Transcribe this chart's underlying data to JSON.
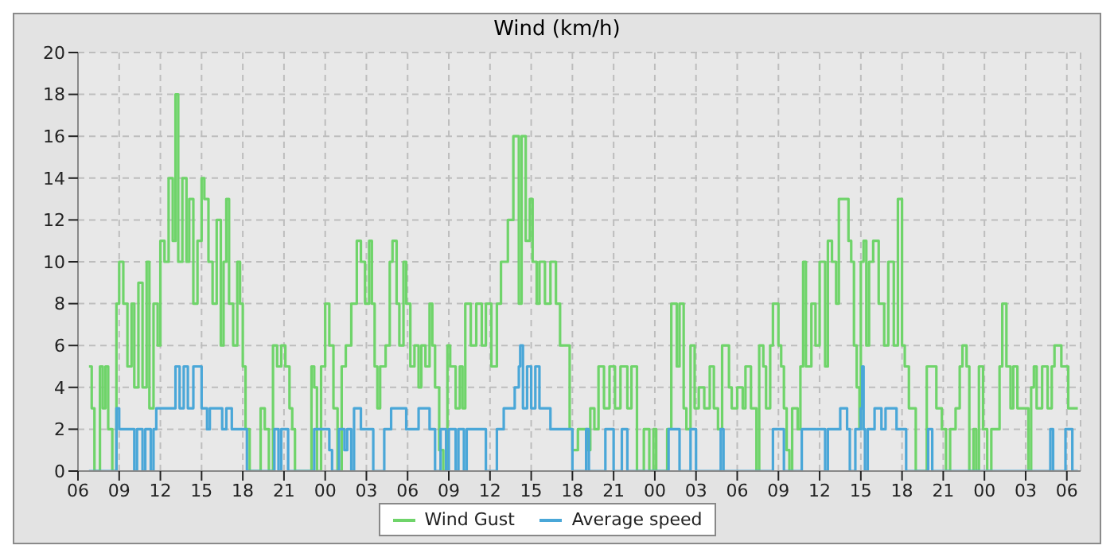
{
  "chart_data": {
    "type": "step",
    "title": "Wind (km/h)",
    "legend": "bottom",
    "grid": true,
    "line_style": "solid",
    "marker": "none",
    "xlim": [
      6,
      79
    ],
    "ylim": [
      0,
      20
    ],
    "yticks": [
      0,
      2,
      4,
      6,
      8,
      10,
      12,
      14,
      16,
      18,
      20
    ],
    "xticks": [
      {
        "value": 6,
        "label": "06"
      },
      {
        "value": 9,
        "label": "09"
      },
      {
        "value": 12,
        "label": "12"
      },
      {
        "value": 15,
        "label": "15"
      },
      {
        "value": 18,
        "label": "18"
      },
      {
        "value": 21,
        "label": "21"
      },
      {
        "value": 24,
        "label": "00"
      },
      {
        "value": 27,
        "label": "03"
      },
      {
        "value": 30,
        "label": "06"
      },
      {
        "value": 33,
        "label": "09"
      },
      {
        "value": 36,
        "label": "12"
      },
      {
        "value": 39,
        "label": "15"
      },
      {
        "value": 42,
        "label": "18"
      },
      {
        "value": 45,
        "label": "21"
      },
      {
        "value": 48,
        "label": "00"
      },
      {
        "value": 51,
        "label": "03"
      },
      {
        "value": 54,
        "label": "06"
      },
      {
        "value": 57,
        "label": "09"
      },
      {
        "value": 60,
        "label": "12"
      },
      {
        "value": 63,
        "label": "15"
      },
      {
        "value": 66,
        "label": "18"
      },
      {
        "value": 69,
        "label": "21"
      },
      {
        "value": 72,
        "label": "00"
      },
      {
        "value": 75,
        "label": "03"
      },
      {
        "value": 78,
        "label": "06"
      }
    ],
    "series": [
      {
        "name": "Wind Gust",
        "color": "#6fd46a",
        "x": [
          6.8,
          7.0,
          7.2,
          7.6,
          7.8,
          8.0,
          8.2,
          8.5,
          8.8,
          9.0,
          9.3,
          9.6,
          9.9,
          10.1,
          10.4,
          10.7,
          11.0,
          11.2,
          11.5,
          11.8,
          12.0,
          12.3,
          12.6,
          12.9,
          13.1,
          13.3,
          13.6,
          13.9,
          14.1,
          14.4,
          14.7,
          15.0,
          15.2,
          15.5,
          15.8,
          16.1,
          16.4,
          16.6,
          16.8,
          17.0,
          17.3,
          17.6,
          17.8,
          18.0,
          18.2,
          18.5,
          19.3,
          19.6,
          19.9,
          20.2,
          20.5,
          20.8,
          21.1,
          21.4,
          21.6,
          21.8,
          23.0,
          23.2,
          23.4,
          23.7,
          24.0,
          24.3,
          24.6,
          24.9,
          25.2,
          25.5,
          25.9,
          26.3,
          26.6,
          26.9,
          27.2,
          27.4,
          27.6,
          27.8,
          28.0,
          28.4,
          28.7,
          28.9,
          29.2,
          29.4,
          29.7,
          29.9,
          30.2,
          30.5,
          30.8,
          31.0,
          31.3,
          31.6,
          31.8,
          32.0,
          32.3,
          32.6,
          32.9,
          33.1,
          33.5,
          33.8,
          34.0,
          34.2,
          34.6,
          35.0,
          35.4,
          35.7,
          36.1,
          36.5,
          36.8,
          37.1,
          37.3,
          37.7,
          38.1,
          38.3,
          38.6,
          38.9,
          39.1,
          39.4,
          39.6,
          40.0,
          40.4,
          40.8,
          41.1,
          41.8,
          42.0,
          42.4,
          43.1,
          43.3,
          43.6,
          43.9,
          44.3,
          44.7,
          45.1,
          45.5,
          46.0,
          46.3,
          46.7,
          47.2,
          47.6,
          47.9,
          48.1,
          48.9,
          49.2,
          49.6,
          49.8,
          50.1,
          50.3,
          50.6,
          50.9,
          51.2,
          51.6,
          52.0,
          52.3,
          52.6,
          52.9,
          53.4,
          53.6,
          54.0,
          54.4,
          54.6,
          55.0,
          55.4,
          55.6,
          55.9,
          56.1,
          56.4,
          56.6,
          57.0,
          57.2,
          57.4,
          57.6,
          57.8,
          58.0,
          58.4,
          58.6,
          58.8,
          59.0,
          59.4,
          59.7,
          60.0,
          60.4,
          60.6,
          60.9,
          61.2,
          61.4,
          62.1,
          62.3,
          62.5,
          62.7,
          62.9,
          63.0,
          63.2,
          63.4,
          63.6,
          63.9,
          64.3,
          64.7,
          65.0,
          65.4,
          65.7,
          66.0,
          66.2,
          66.5,
          66.8,
          67.0,
          67.8,
          68.5,
          68.9,
          69.2,
          69.5,
          69.9,
          70.2,
          70.4,
          70.7,
          70.9,
          71.2,
          71.4,
          71.6,
          71.9,
          72.2,
          72.5,
          72.8,
          73.1,
          73.3,
          73.6,
          73.9,
          74.1,
          74.4,
          75.2,
          75.4,
          75.6,
          75.8,
          76.2,
          76.6,
          76.9,
          77.1,
          77.6,
          78.1,
          78.8
        ],
        "values": [
          5,
          3,
          0,
          5,
          3,
          5,
          2,
          0,
          8,
          10,
          8,
          5,
          8,
          4,
          9,
          4,
          10,
          3,
          8,
          6,
          11,
          10,
          14,
          11,
          18,
          10,
          14,
          10,
          13,
          8,
          11,
          14,
          13,
          10,
          8,
          12,
          6,
          10,
          13,
          8,
          6,
          10,
          8,
          5,
          2,
          0,
          3,
          2,
          0,
          6,
          5,
          6,
          5,
          3,
          2,
          0,
          5,
          4,
          0,
          5,
          8,
          6,
          3,
          0,
          5,
          6,
          8,
          11,
          10,
          8,
          11,
          8,
          5,
          3,
          5,
          6,
          10,
          11,
          8,
          6,
          10,
          8,
          5,
          6,
          4,
          6,
          5,
          8,
          6,
          4,
          1,
          0,
          6,
          5,
          3,
          5,
          3,
          8,
          6,
          8,
          6,
          8,
          5,
          8,
          10,
          10,
          12,
          16,
          8,
          16,
          11,
          13,
          10,
          8,
          10,
          8,
          10,
          8,
          6,
          2,
          1,
          2,
          1,
          3,
          2,
          5,
          3,
          5,
          3,
          5,
          3,
          5,
          0,
          2,
          0,
          2,
          0,
          2,
          8,
          5,
          8,
          3,
          2,
          6,
          3,
          4,
          3,
          5,
          3,
          2,
          6,
          4,
          3,
          4,
          3,
          5,
          3,
          0,
          6,
          5,
          3,
          6,
          8,
          6,
          5,
          3,
          1,
          0,
          3,
          2,
          5,
          10,
          5,
          8,
          6,
          10,
          5,
          11,
          10,
          8,
          13,
          11,
          10,
          6,
          4,
          2,
          10,
          11,
          6,
          10,
          11,
          8,
          6,
          10,
          6,
          13,
          6,
          5,
          3,
          3,
          0,
          5,
          3,
          2,
          0,
          2,
          3,
          5,
          6,
          5,
          0,
          2,
          0,
          5,
          2,
          0,
          2,
          2,
          5,
          8,
          5,
          3,
          5,
          3,
          0,
          4,
          5,
          3,
          5,
          3,
          5,
          6,
          5,
          3,
          3
        ]
      },
      {
        "name": "Average speed",
        "color": "#4aa7d8",
        "x": [
          6.8,
          8.8,
          9.0,
          10.1,
          10.3,
          10.7,
          10.9,
          11.3,
          11.5,
          11.7,
          13.1,
          13.4,
          13.7,
          14.0,
          14.4,
          15.0,
          15.4,
          15.6,
          16.5,
          16.8,
          17.2,
          18.3,
          20.3,
          20.6,
          20.8,
          21.3,
          23.2,
          24.3,
          24.5,
          25.0,
          25.4,
          25.6,
          25.9,
          26.1,
          26.6,
          27.5,
          28.3,
          28.8,
          29.9,
          30.8,
          31.6,
          32.0,
          32.4,
          32.8,
          33.0,
          33.5,
          33.7,
          34.1,
          34.3,
          35.7,
          36.5,
          37.0,
          37.8,
          38.1,
          38.2,
          38.4,
          38.7,
          39.0,
          39.3,
          39.6,
          40.4,
          42.0,
          43.0,
          43.2,
          44.4,
          45.0,
          45.6,
          46.0,
          49.0,
          49.8,
          50.6,
          51.0,
          52.8,
          53.0,
          56.6,
          57.4,
          58.7,
          60.4,
          60.6,
          61.5,
          62.0,
          62.2,
          62.6,
          63.0,
          63.1,
          63.2,
          63.3,
          63.5,
          64.0,
          64.5,
          64.8,
          65.6,
          66.3,
          67.9,
          68.2,
          76.8,
          77.0,
          77.9,
          78.4,
          78.8
        ],
        "values": [
          0,
          3,
          2,
          0,
          2,
          0,
          2,
          0,
          2,
          3,
          5,
          3,
          5,
          3,
          5,
          3,
          2,
          3,
          2,
          3,
          2,
          0,
          2,
          0,
          2,
          0,
          2,
          1,
          0,
          2,
          1,
          2,
          0,
          3,
          2,
          0,
          2,
          3,
          2,
          3,
          2,
          0,
          2,
          0,
          2,
          0,
          2,
          0,
          2,
          0,
          2,
          3,
          4,
          5,
          6,
          3,
          5,
          3,
          5,
          3,
          2,
          0,
          2,
          0,
          2,
          0,
          2,
          0,
          2,
          0,
          2,
          0,
          2,
          0,
          2,
          0,
          2,
          0,
          2,
          3,
          2,
          0,
          2,
          3,
          5,
          2,
          0,
          2,
          3,
          2,
          3,
          2,
          0,
          2,
          0,
          2,
          0,
          2,
          0,
          0
        ]
      }
    ]
  }
}
